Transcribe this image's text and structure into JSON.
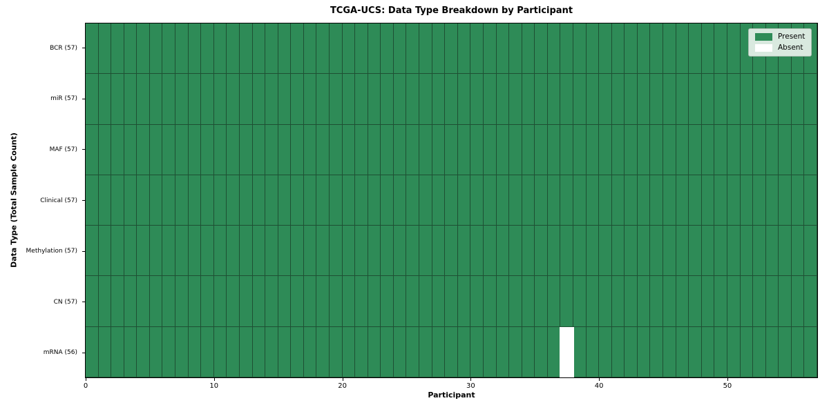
{
  "chart_data": {
    "type": "heatmap",
    "title": "TCGA-UCS: Data Type Breakdown by Participant",
    "xlabel": "Participant",
    "ylabel": "Data Type (Total Sample Count)",
    "n_participants": 57,
    "x_range": [
      0,
      57
    ],
    "x_ticks": [
      0,
      10,
      20,
      30,
      40,
      50
    ],
    "rows": [
      {
        "label": "BCR (57)",
        "total": 57,
        "absent_participants": []
      },
      {
        "label": "miR (57)",
        "total": 57,
        "absent_participants": []
      },
      {
        "label": "MAF (57)",
        "total": 57,
        "absent_participants": []
      },
      {
        "label": "Clinical (57)",
        "total": 57,
        "absent_participants": []
      },
      {
        "label": "Methylation (57)",
        "total": 57,
        "absent_participants": []
      },
      {
        "label": "CN (57)",
        "total": 57,
        "absent_participants": []
      },
      {
        "label": "mRNA (56)",
        "total": 56,
        "absent_participants": [
          37
        ]
      }
    ],
    "legend": {
      "position": "upper-right",
      "entries": [
        {
          "label": "Present",
          "color": "#2e8b57"
        },
        {
          "label": "Absent",
          "color": "#ffffff"
        }
      ]
    },
    "colors": {
      "present": "#2e8b57",
      "absent": "#ffffff",
      "cell_edge": "#1e4f33",
      "frame": "#000000",
      "background": "#ffffff"
    }
  }
}
